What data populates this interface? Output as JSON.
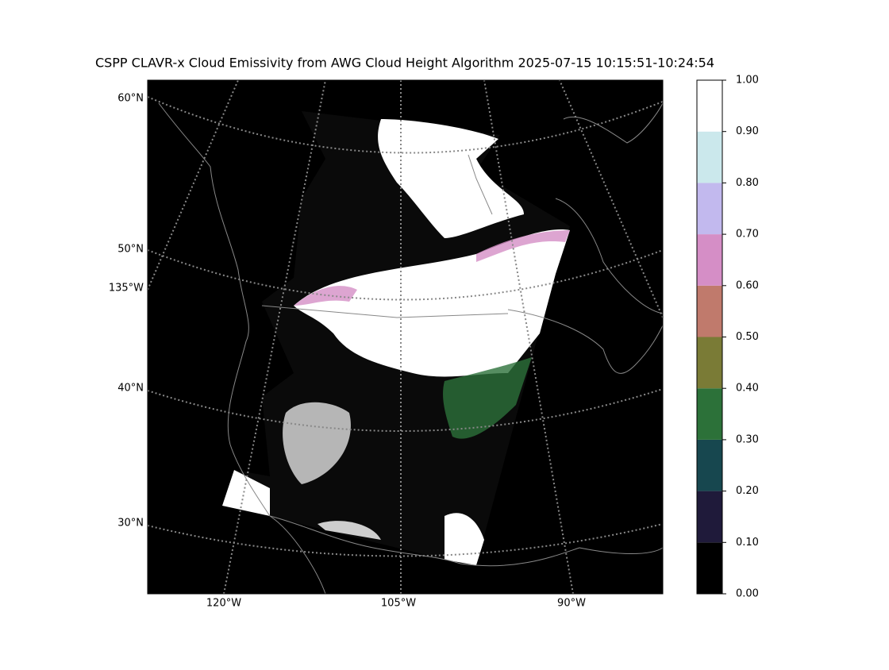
{
  "title": "CSPP CLAVR-x Cloud Emissivity from AWG Cloud Height Algorithm 2025-07-15 10:15:51-10:24:54",
  "map": {
    "lat_labels": [
      "60°N",
      "50°N",
      "40°N",
      "30°N"
    ],
    "lon_labels": [
      "135°W",
      "120°W",
      "105°W",
      "90°W"
    ]
  },
  "colorbar": {
    "ticks": [
      {
        "value": 0,
        "label": "0.00"
      },
      {
        "value": 0.1,
        "label": "0.10"
      },
      {
        "value": 0.2,
        "label": "0.20"
      },
      {
        "value": 0.3,
        "label": "0.30"
      },
      {
        "value": 0.4,
        "label": "0.40"
      },
      {
        "value": 0.5,
        "label": "0.50"
      },
      {
        "value": 0.6,
        "label": "0.60"
      },
      {
        "value": 0.7,
        "label": "0.70"
      },
      {
        "value": 0.8,
        "label": "0.80"
      },
      {
        "value": 0.9,
        "label": "0.90"
      },
      {
        "value": 1,
        "label": "1.00"
      }
    ],
    "lim": [
      0,
      1
    ],
    "colors": [
      "#000000",
      "#1f1a3a",
      "#17474f",
      "#2c7139",
      "#7a7b36",
      "#c07a6c",
      "#d58ec6",
      "#c2b9ee",
      "#cbe8ec",
      "#ffffff"
    ]
  }
}
